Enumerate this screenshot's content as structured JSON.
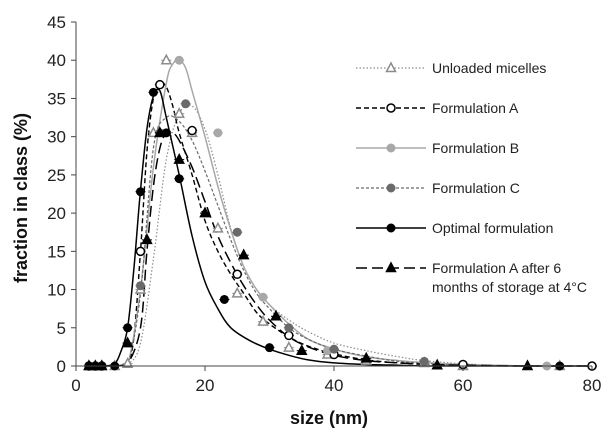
{
  "chart_data": {
    "type": "line",
    "xlabel": "size (nm)",
    "ylabel": "fraction in class (%)",
    "xlim": [
      0,
      80
    ],
    "ylim": [
      0,
      45
    ],
    "xticks": [
      0,
      20,
      40,
      60,
      80
    ],
    "yticks": [
      0,
      5,
      10,
      15,
      20,
      25,
      30,
      35,
      40,
      45
    ],
    "grid": false,
    "legend_position": "right",
    "series": [
      {
        "name": "Unloaded micelles",
        "color": "#8c8c8c",
        "dash": "dotted",
        "marker": "open-triangle",
        "x": [
          1.5,
          2.5,
          3.5,
          4.5,
          6,
          8,
          10,
          12,
          14,
          16,
          18,
          20,
          22,
          24,
          26,
          28,
          30,
          33,
          36,
          40,
          45,
          50,
          54,
          60,
          66,
          72,
          80
        ],
        "y": [
          0,
          0,
          0,
          0,
          0,
          0.2,
          3,
          14,
          27,
          33,
          34,
          31,
          25,
          18,
          13,
          10,
          8,
          6,
          4.5,
          3,
          2,
          1.2,
          0.7,
          0.3,
          0.1,
          0,
          0
        ],
        "marker_x": [
          2,
          3,
          4,
          6,
          8,
          10,
          12,
          14,
          16,
          18,
          22,
          25,
          29,
          33,
          39,
          45,
          54,
          60,
          75
        ],
        "marker_y": [
          0,
          0,
          0,
          0,
          0.3,
          10,
          30.5,
          40,
          33,
          30.5,
          18,
          9.5,
          5.8,
          2.4,
          1.5,
          0.7,
          0.4,
          0,
          0
        ]
      },
      {
        "name": "Formulation A",
        "color": "#000000",
        "dash": "short-dash",
        "marker": "open-circle",
        "x": [
          1.5,
          2.5,
          3.5,
          4.5,
          6,
          8,
          9,
          10,
          11,
          12,
          13,
          14,
          15,
          16,
          18,
          20,
          22,
          24,
          26,
          28,
          30,
          33,
          36,
          40,
          45,
          50,
          55,
          60,
          70,
          80
        ],
        "y": [
          0,
          0,
          0,
          0,
          0,
          0.3,
          4,
          15,
          28,
          35,
          37,
          36.5,
          34,
          30.5,
          25,
          19,
          15,
          12,
          9.5,
          7,
          5.5,
          3.8,
          2.6,
          1.6,
          0.8,
          0.4,
          0.2,
          0.1,
          0,
          0
        ],
        "marker_x": [
          2,
          3,
          4,
          10,
          13,
          18,
          25,
          33,
          40,
          60,
          80
        ],
        "marker_y": [
          0,
          0,
          0,
          15,
          36.8,
          30.8,
          12,
          4,
          1.5,
          0.2,
          0
        ]
      },
      {
        "name": "Formulation B",
        "color": "#a8a8a8",
        "dash": "solid",
        "marker": "filled-circle",
        "x": [
          1.5,
          2.5,
          3.5,
          4.5,
          6,
          8,
          10,
          12,
          14,
          15,
          16,
          17,
          18,
          20,
          22,
          24,
          26,
          28,
          30,
          33,
          36,
          40,
          45,
          50,
          55,
          60,
          65,
          70,
          75,
          80
        ],
        "y": [
          0,
          0,
          0,
          0,
          0,
          0.2,
          10,
          26,
          37,
          39.5,
          40,
          39,
          36,
          30,
          23.5,
          17.8,
          13,
          10,
          8,
          5.5,
          3.5,
          2.2,
          1.2,
          0.7,
          0.4,
          0.2,
          0.1,
          0,
          0,
          0
        ],
        "marker_x": [
          2,
          3,
          4,
          16,
          22,
          29,
          39,
          54,
          73
        ],
        "marker_y": [
          0,
          0,
          0,
          40,
          30.5,
          9,
          2,
          0.5,
          0
        ]
      },
      {
        "name": "Formulation C",
        "color": "#6a6a6a",
        "dash": "dashed-gray",
        "marker": "filled-circle",
        "x": [
          1.5,
          2.5,
          3.5,
          4.5,
          6,
          8,
          10,
          12,
          14,
          16,
          18,
          20,
          22,
          24,
          26,
          28,
          30,
          33,
          36,
          40,
          45,
          50,
          55,
          60,
          70,
          80
        ],
        "y": [
          0,
          0,
          0,
          0,
          0,
          0.2,
          9.5,
          28.5,
          32.5,
          32,
          29.5,
          25.5,
          21,
          16.5,
          12.5,
          9.5,
          7.5,
          5,
          3.5,
          2.2,
          1.3,
          0.6,
          0.3,
          0.1,
          0,
          0
        ],
        "marker_x": [
          2,
          3,
          4,
          10,
          13,
          17,
          25,
          33,
          40,
          54
        ],
        "marker_y": [
          0,
          0,
          0,
          10.5,
          30.5,
          34.3,
          17.5,
          5,
          2.2,
          0.6
        ]
      },
      {
        "name": "Optimal formulation",
        "color": "#000000",
        "dash": "solid",
        "marker": "filled-circle",
        "x": [
          1.5,
          2.5,
          3.5,
          4.5,
          6,
          7,
          8,
          9,
          10,
          11,
          12,
          13,
          14,
          16,
          18,
          20,
          22,
          24,
          27,
          30,
          33,
          36,
          40,
          45,
          50,
          55,
          60,
          70,
          80
        ],
        "y": [
          0,
          0,
          0,
          0,
          0.3,
          2,
          5,
          13,
          23,
          31,
          35.3,
          36,
          32.5,
          25,
          17,
          11,
          7.5,
          5,
          3.3,
          2.2,
          1.4,
          0.8,
          0.4,
          0.2,
          0.1,
          0,
          0,
          0,
          0
        ],
        "marker_x": [
          2,
          3,
          4,
          6,
          8,
          10,
          12,
          14,
          16,
          23,
          30,
          75
        ],
        "marker_y": [
          0,
          0,
          0,
          0,
          5,
          22.8,
          35.8,
          30.5,
          24.5,
          8.7,
          2.4,
          0
        ]
      },
      {
        "name": "Formulation A after 6 months of storage at 4°C",
        "color": "#000000",
        "dash": "long-dash",
        "marker": "filled-triangle",
        "x": [
          1.5,
          2.5,
          3.5,
          4.5,
          6,
          8,
          10,
          11,
          12,
          13,
          14,
          15,
          16,
          18,
          20,
          22,
          24,
          26,
          28,
          30,
          33,
          36,
          40,
          45,
          50,
          55,
          60,
          70,
          80
        ],
        "y": [
          0,
          0,
          0,
          0,
          0,
          0.3,
          5,
          15,
          23.5,
          28.5,
          30.5,
          30.5,
          29.5,
          26,
          21.5,
          17,
          13.5,
          10.5,
          8,
          6,
          3.8,
          2.5,
          1.4,
          0.7,
          0.4,
          0.2,
          0.1,
          0,
          0
        ],
        "marker_x": [
          2,
          3,
          4,
          8,
          11,
          13,
          16,
          20,
          26,
          31,
          35,
          45,
          56,
          70
        ],
        "marker_y": [
          0,
          0,
          0,
          3,
          16.5,
          30.5,
          27,
          20,
          14.5,
          6.5,
          2,
          1,
          0.1,
          0
        ]
      }
    ]
  }
}
